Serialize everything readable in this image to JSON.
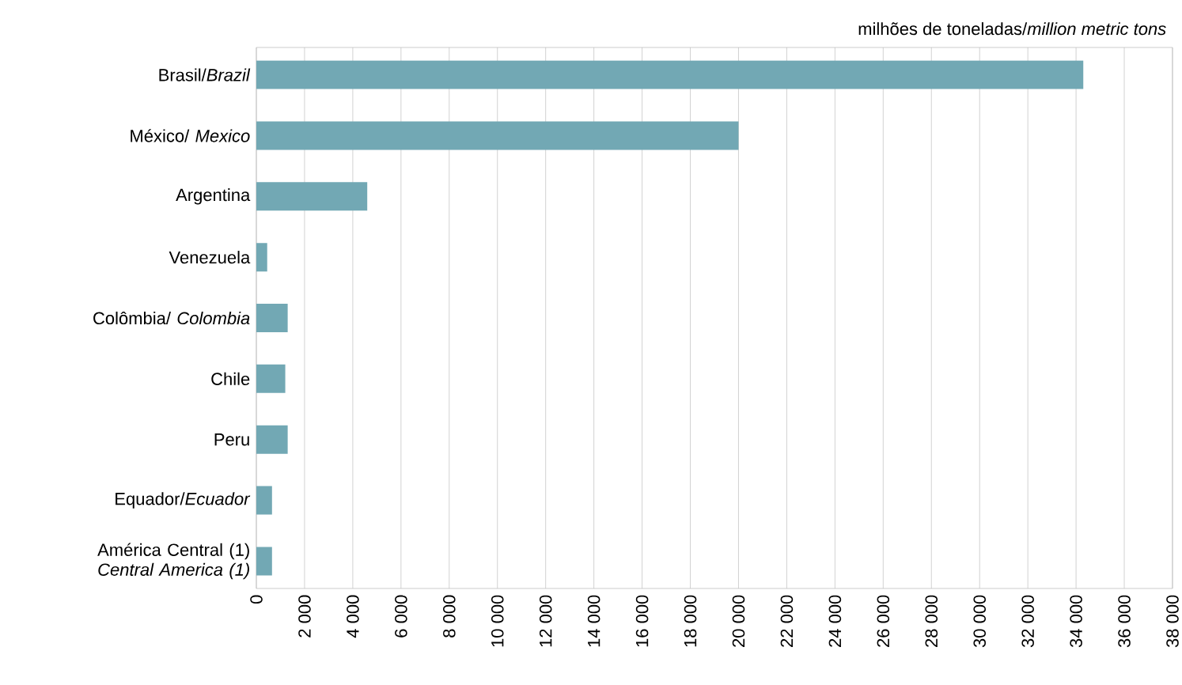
{
  "chart_data": {
    "type": "bar",
    "orientation": "horizontal",
    "title": "milhões de toneladas/*million metric tons*",
    "categories": [
      "Brasil/*Brazil*",
      "México/ *Mexico*",
      "Argentina",
      "Venezuela",
      "Colômbia/ *Colombia*",
      "Chile",
      "Peru",
      "Equador/*Ecuador*",
      "América Central (1) *Central America (1)*"
    ],
    "values": [
      34300,
      20000,
      4600,
      450,
      1300,
      1200,
      1300,
      650,
      650
    ],
    "color": "#72a8b4",
    "xlim": [
      0,
      38000
    ],
    "xticks": [
      0,
      {
        "value": 2000,
        "label": "2 000"
      },
      {
        "value": 4000,
        "label": "4 000"
      },
      {
        "value": 6000,
        "label": "6 000"
      },
      {
        "value": 8000,
        "label": "8 000"
      },
      {
        "value": 10000,
        "label": "10 000"
      },
      {
        "value": 12000,
        "label": "12 000"
      },
      {
        "value": 14000,
        "label": "14 000"
      },
      {
        "value": 16000,
        "label": "16 000"
      },
      {
        "value": 18000,
        "label": "18 000"
      },
      {
        "value": 20000,
        "label": "20 000"
      },
      {
        "value": 22000,
        "label": "22 000"
      },
      {
        "value": 24000,
        "label": "24 000"
      },
      {
        "value": 26000,
        "label": "26 000"
      },
      {
        "value": 28000,
        "label": "28 000"
      },
      {
        "value": 30000,
        "label": "30 000"
      },
      {
        "value": 32000,
        "label": "32 000"
      },
      {
        "value": 34000,
        "label": "34 000"
      },
      {
        "value": 36000,
        "label": "36 000"
      },
      {
        "value": 38000,
        "label": "38 000"
      }
    ],
    "grid": "x"
  }
}
